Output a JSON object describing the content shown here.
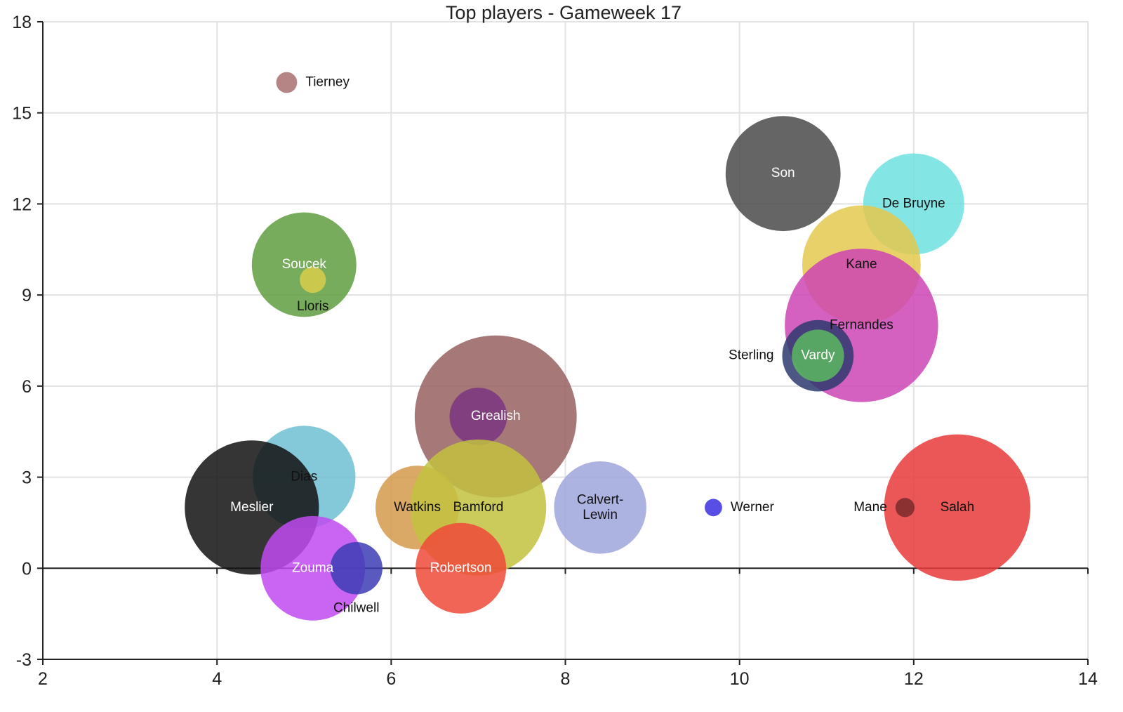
{
  "chart_data": {
    "type": "scatter",
    "title": "Top players - Gameweek 17",
    "xlabel": "",
    "ylabel": "",
    "xlim": [
      2,
      14
    ],
    "ylim": [
      -3,
      18
    ],
    "x_ticks": [
      "2",
      "4",
      "6",
      "8",
      "10",
      "12",
      "14"
    ],
    "y_ticks": [
      "18",
      "15",
      "12",
      "9",
      "6",
      "3",
      "0",
      "-3"
    ],
    "grid": true,
    "points": [
      {
        "label": "Tierney",
        "x": 4.8,
        "y": 16,
        "size": 0.12,
        "color": "#a87070",
        "label_color": "#111111",
        "label_position": "right"
      },
      {
        "label": "Son",
        "x": 10.5,
        "y": 13,
        "size": 0.66,
        "color": "#4a4a4a",
        "label_color": "#ffffff",
        "label_position": "center"
      },
      {
        "label": "De Bruyne",
        "x": 12.0,
        "y": 12,
        "size": 0.58,
        "color": "#6ee0e0",
        "label_color": "#111111",
        "label_position": "center"
      },
      {
        "label": "Kane",
        "x": 11.4,
        "y": 10,
        "size": 0.68,
        "color": "#e3c94d",
        "label_color": "#111111",
        "label_position": "center"
      },
      {
        "label": "Soucek",
        "x": 5.0,
        "y": 10,
        "size": 0.6,
        "color": "#5f9e3f",
        "label_color": "#ffffff",
        "label_position": "center"
      },
      {
        "label": "Lloris",
        "x": 5.1,
        "y": 9.5,
        "size": 0.15,
        "color": "#d8cc4a",
        "label_color": "#111111",
        "label_position": "below"
      },
      {
        "label": "Fernandes",
        "x": 11.4,
        "y": 8,
        "size": 0.88,
        "color": "#cc44b4",
        "label_color": "#111111",
        "label_position": "center"
      },
      {
        "label": "Sterling",
        "x": 10.9,
        "y": 7,
        "size": 0.41,
        "color": "#2e3a6e",
        "label_color": "#111111",
        "label_position": "left"
      },
      {
        "label": "Vardy",
        "x": 10.9,
        "y": 7,
        "size": 0.3,
        "color": "#5cb860",
        "label_color": "#ffffff",
        "label_position": "center"
      },
      {
        "label": "Grealish",
        "x": 7.2,
        "y": 5,
        "size": 0.93,
        "color": "#966060",
        "label_color": "#ffffff",
        "label_position": "center"
      },
      {
        "label": "",
        "x": 7.0,
        "y": 5,
        "size": 0.33,
        "color": "#7b3580",
        "label_color": "#ffffff",
        "label_position": "none"
      },
      {
        "label": "Dias",
        "x": 5.0,
        "y": 3,
        "size": 0.59,
        "color": "#6fc0d2",
        "label_color": "#111111",
        "label_position": "center"
      },
      {
        "label": "Meslier",
        "x": 4.4,
        "y": 2,
        "size": 0.77,
        "color": "#121212",
        "label_color": "#ffffff",
        "label_position": "center"
      },
      {
        "label": "Watkins",
        "x": 6.3,
        "y": 2,
        "size": 0.48,
        "color": "#d39a4a",
        "label_color": "#111111",
        "label_position": "center"
      },
      {
        "label": "Bamford",
        "x": 7.0,
        "y": 2,
        "size": 0.78,
        "color": "#c2c240",
        "label_color": "#111111",
        "label_position": "center"
      },
      {
        "label": "Calvert-Lewin",
        "x": 8.4,
        "y": 2,
        "size": 0.53,
        "color": "#9fa6dc",
        "label_color": "#111111",
        "label_position": "center"
      },
      {
        "label": "Werner",
        "x": 9.7,
        "y": 2,
        "size": 0.1,
        "color": "#3b2ee0",
        "label_color": "#111111",
        "label_position": "right"
      },
      {
        "label": "Salah",
        "x": 12.5,
        "y": 2,
        "size": 0.84,
        "color": "#e83a3a",
        "label_color": "#111111",
        "label_position": "center"
      },
      {
        "label": "Mane",
        "x": 11.9,
        "y": 2,
        "size": 0.11,
        "color": "#7a2a2a",
        "label_color": "#111111",
        "label_position": "left"
      },
      {
        "label": "Zouma",
        "x": 5.1,
        "y": 0,
        "size": 0.6,
        "color": "#c04af0",
        "label_color": "#ffffff",
        "label_position": "center"
      },
      {
        "label": "Chilwell",
        "x": 5.6,
        "y": 0,
        "size": 0.3,
        "color": "#3c3cb4",
        "label_color": "#111111",
        "label_position": "below"
      },
      {
        "label": "Robertson",
        "x": 6.8,
        "y": 0,
        "size": 0.52,
        "color": "#ee4a38",
        "label_color": "#ffffff",
        "label_position": "center"
      }
    ]
  }
}
